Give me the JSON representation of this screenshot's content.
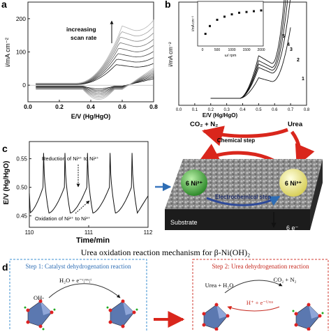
{
  "panel_a": {
    "letter": "a",
    "ylabel": "i/mA cm⁻²",
    "xlabel": "E/V (Hg/HgO)",
    "annotation": [
      "increasing",
      "scan rate"
    ],
    "xticks": [
      "0.0",
      "0.2",
      "0.4",
      "0.6",
      "0.8"
    ],
    "yticks": [
      "0",
      "100",
      "200"
    ]
  },
  "panel_b": {
    "letter": "b",
    "ylabel": "i/mA cm⁻²",
    "xlabel": "E/V (Hg/HgO)",
    "xticks": [
      "0.0",
      "0.1",
      "0.2",
      "0.3",
      "0.4",
      "0.5",
      "0.6",
      "0.7",
      "0.8"
    ],
    "curve_labels": [
      "1",
      "2",
      "3",
      "4",
      "5"
    ],
    "inset": {
      "ylabel": "i/mA cm⁻²",
      "xlabel": "ω/ rpm",
      "xticks": [
        "0",
        "500",
        "1000",
        "1500",
        "2000"
      ]
    }
  },
  "panel_c": {
    "letter": "c",
    "ylabel": "E/V (Hg/HgO)",
    "xlabel": "Time/min",
    "yticks": [
      "0.45",
      "0.50",
      "0.55"
    ],
    "xticks": [
      "110",
      "111",
      "112"
    ],
    "annotation_top": "Reduction of Ni³⁺ to Ni²⁺",
    "annotation_bottom": "Oxidation of Ni²⁺ to Ni³⁺"
  },
  "scheme_c": {
    "products": "CO₂ + N₂",
    "reactant": "Urea",
    "chemical_step": "Chemical step",
    "electrochemical_step": "Electrochemical step",
    "ni2": "6 Ni²⁺",
    "ni3": "6 Ni³⁺",
    "substrate": "Substrate",
    "electrons": "6 e⁻"
  },
  "panel_d": {
    "letter": "d",
    "title": "Urea oxidation reaction mechanism for β-Ni(OH)₂",
    "step1_title": "Step 1: Catalyst dehydrogenation reaction",
    "step1_reagent": "H₂O + e⁻ᶜᵢʳᶜᵘᵢᵗ",
    "step1_oh": "OH-",
    "step2_title": "Step 2: Urea dehydrogenation reaction",
    "step2_reactant": "Urea + H₂O",
    "step2_product": "CO₂ + N₂",
    "step2_h": "H⁺ + e⁻ᵁʳᵉᵃ"
  },
  "colors": {
    "accent_red": "#d9261c",
    "step_blue": "#3b8fd0",
    "step_red": "#d23b30",
    "arrow_blue": "#2e6db4",
    "ni2_green": "#3fa33a",
    "ni3_yellow": "#f2ea8a"
  },
  "chart_data": [
    {
      "type": "line",
      "panel": "a",
      "xlabel": "E/V (Hg/HgO)",
      "ylabel": "i/mA cm⁻²",
      "xlim": [
        0.0,
        0.8
      ],
      "ylim": [
        -50,
        250
      ],
      "series_count": 8,
      "peak_potential": [
        0.56,
        0.6
      ],
      "max_current": [
        80,
        230
      ]
    },
    {
      "type": "line",
      "panel": "b",
      "xlabel": "E/V (Hg/HgO)",
      "ylabel": "i/mA cm⁻²",
      "xlim": [
        0.0,
        0.8
      ],
      "series": [
        {
          "name": "1",
          "peak_value": 0.3
        },
        {
          "name": "2",
          "peak_value": 0.45
        },
        {
          "name": "3",
          "peak_value": 0.5
        },
        {
          "name": "4",
          "peak_value": 0.55
        },
        {
          "name": "5",
          "peak_value": 0.62
        }
      ],
      "inset": {
        "type": "scatter",
        "xlabel": "ω/ rpm",
        "x": [
          100,
          250,
          500,
          750,
          1000,
          1250,
          1500,
          1750,
          2000
        ],
        "y": [
          0.42,
          0.52,
          0.6,
          0.64,
          0.67,
          0.69,
          0.7,
          0.71,
          0.72
        ]
      }
    },
    {
      "type": "line",
      "panel": "c",
      "xlabel": "Time/min",
      "ylabel": "E/V (Hg/HgO)",
      "xlim": [
        110,
        112
      ],
      "ylim": [
        0.43,
        0.58
      ],
      "oscillation_high": 0.56,
      "oscillation_low": 0.455,
      "spike_times": [
        110.23,
        110.59,
        110.97,
        111.35,
        111.72
      ]
    }
  ]
}
